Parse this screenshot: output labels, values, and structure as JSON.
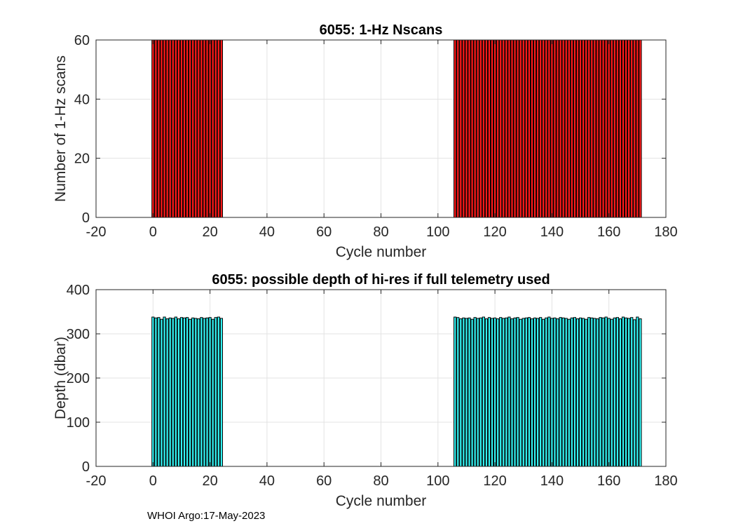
{
  "chart_data": [
    {
      "type": "bar",
      "title": "6055: 1-Hz Nscans",
      "xlabel": "Cycle number",
      "ylabel": "Number of 1-Hz scans",
      "xlim": [
        -20,
        180
      ],
      "ylim": [
        0,
        60
      ],
      "xticks": [
        -20,
        0,
        20,
        40,
        60,
        80,
        100,
        120,
        140,
        160,
        180
      ],
      "yticks": [
        0,
        20,
        40,
        60
      ],
      "grid": true,
      "bar_color": "#ff1a1a",
      "edge_color": "#000000",
      "series": [
        {
          "name": "1-Hz scans",
          "x": [
            0,
            1,
            2,
            3,
            4,
            5,
            6,
            7,
            8,
            9,
            10,
            11,
            12,
            13,
            14,
            15,
            16,
            17,
            18,
            19,
            20,
            21,
            22,
            23,
            24,
            106,
            107,
            108,
            109,
            110,
            111,
            112,
            113,
            114,
            115,
            116,
            117,
            118,
            119,
            120,
            121,
            122,
            123,
            124,
            125,
            126,
            127,
            128,
            129,
            130,
            131,
            132,
            133,
            134,
            135,
            136,
            137,
            138,
            139,
            140,
            141,
            142,
            143,
            144,
            145,
            146,
            147,
            148,
            149,
            150,
            151,
            152,
            153,
            154,
            155,
            156,
            157,
            158,
            159,
            160,
            161,
            162,
            163,
            164,
            165,
            166,
            167,
            168,
            169,
            170,
            171
          ],
          "values": [
            60,
            60,
            60,
            60,
            60,
            60,
            60,
            60,
            60,
            60,
            60,
            60,
            60,
            60,
            60,
            60,
            60,
            60,
            60,
            60,
            60,
            60,
            60,
            60,
            60,
            60,
            60,
            60,
            60,
            60,
            60,
            60,
            60,
            60,
            60,
            60,
            60,
            60,
            60,
            60,
            60,
            60,
            60,
            60,
            60,
            60,
            60,
            60,
            60,
            60,
            60,
            60,
            60,
            60,
            60,
            60,
            60,
            60,
            60,
            60,
            60,
            60,
            60,
            60,
            60,
            60,
            60,
            60,
            60,
            60,
            60,
            60,
            60,
            60,
            60,
            60,
            60,
            60,
            60,
            60,
            60,
            60,
            60,
            60,
            60,
            60,
            60,
            60,
            60,
            60,
            60
          ]
        }
      ]
    },
    {
      "type": "bar",
      "title": "6055: possible depth of hi-res if full telemetry used",
      "xlabel": "Cycle number",
      "ylabel": "Depth (dbar)",
      "xlim": [
        -20,
        180
      ],
      "ylim": [
        0,
        400
      ],
      "xticks": [
        -20,
        0,
        20,
        40,
        60,
        80,
        100,
        120,
        140,
        160,
        180
      ],
      "yticks": [
        0,
        100,
        200,
        300,
        400
      ],
      "grid": true,
      "bar_color": "#33f3f3",
      "edge_color": "#000000",
      "series": [
        {
          "name": "Depth",
          "x": [
            0,
            1,
            2,
            3,
            4,
            5,
            6,
            7,
            8,
            9,
            10,
            11,
            12,
            13,
            14,
            15,
            16,
            17,
            18,
            19,
            20,
            21,
            22,
            23,
            24,
            106,
            107,
            108,
            109,
            110,
            111,
            112,
            113,
            114,
            115,
            116,
            117,
            118,
            119,
            120,
            121,
            122,
            123,
            124,
            125,
            126,
            127,
            128,
            129,
            130,
            131,
            132,
            133,
            134,
            135,
            136,
            137,
            138,
            139,
            140,
            141,
            142,
            143,
            144,
            145,
            146,
            147,
            148,
            149,
            150,
            151,
            152,
            153,
            154,
            155,
            156,
            157,
            158,
            159,
            160,
            161,
            162,
            163,
            164,
            165,
            166,
            167,
            168,
            169,
            170,
            171
          ],
          "values": [
            338,
            336,
            337,
            333,
            338,
            334,
            336,
            335,
            338,
            334,
            337,
            336,
            337,
            333,
            336,
            335,
            334,
            337,
            335,
            336,
            337,
            333,
            337,
            338,
            335,
            338,
            337,
            334,
            336,
            335,
            336,
            333,
            337,
            335,
            336,
            338,
            334,
            337,
            335,
            336,
            334,
            337,
            335,
            336,
            338,
            334,
            336,
            337,
            333,
            335,
            336,
            337,
            334,
            336,
            335,
            337,
            333,
            336,
            338,
            335,
            336,
            334,
            337,
            336,
            335,
            333,
            336,
            337,
            334,
            336,
            335,
            333,
            337,
            336,
            335,
            334,
            337,
            336,
            338,
            335,
            333,
            336,
            337,
            334,
            338,
            336,
            335,
            337,
            332,
            338,
            334
          ]
        }
      ]
    }
  ],
  "footer_text": "WHOI Argo:17-May-2023"
}
